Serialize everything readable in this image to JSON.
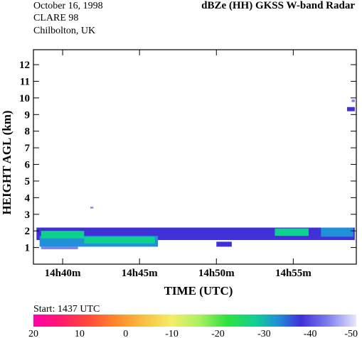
{
  "header": {
    "date": "October 16, 1998",
    "campaign": "CLARE 98",
    "site": "Chilbolton, UK",
    "title": "dBZe (HH)   GKSS  W-band Radar"
  },
  "chart_data": {
    "type": "heatmap",
    "title": "dBZe (HH)   GKSS  W-band Radar",
    "xlabel": "TIME (UTC)",
    "ylabel": "HEIGHT AGL (km)",
    "x_ticks": [
      "14h40m",
      "14h45m",
      "14h50m",
      "14h55m"
    ],
    "x_tick_minutes": [
      40,
      45,
      50,
      55
    ],
    "xlim_minutes": [
      38.1,
      59.1
    ],
    "y_ticks": [
      1,
      2,
      3,
      4,
      5,
      6,
      7,
      8,
      9,
      10,
      11,
      12
    ],
    "ylim": [
      0,
      12.9
    ],
    "colorbar": {
      "ticks": [
        "20",
        "10",
        "0",
        "-10",
        "-20",
        "-30",
        "-40",
        "-50"
      ],
      "range": [
        20,
        -50
      ],
      "start_label": "Start:  1437 UTC",
      "stops": [
        {
          "v": 20,
          "c": "#ff00a8"
        },
        {
          "v": 14,
          "c": "#ff1a6a"
        },
        {
          "v": 8,
          "c": "#ff4a3a"
        },
        {
          "v": 2,
          "c": "#ff8a2a"
        },
        {
          "v": -4,
          "c": "#f8c040"
        },
        {
          "v": -10,
          "c": "#f4ee6a"
        },
        {
          "v": -16,
          "c": "#a8f060"
        },
        {
          "v": -22,
          "c": "#30e040"
        },
        {
          "v": -28,
          "c": "#10d090"
        },
        {
          "v": -33,
          "c": "#2090d8"
        },
        {
          "v": -38,
          "c": "#4030d8"
        },
        {
          "v": -44,
          "c": "#8080ee"
        },
        {
          "v": -50,
          "c": "#e8e8fc"
        }
      ]
    },
    "echo_regions": [
      {
        "t0": 38.3,
        "t1": 59.0,
        "h0": 1.45,
        "h1": 2.2,
        "dbz": -38
      },
      {
        "t0": 38.5,
        "t1": 46.2,
        "h0": 1.05,
        "h1": 1.7,
        "dbz": -33
      },
      {
        "t0": 38.6,
        "t1": 41.4,
        "h0": 1.55,
        "h1": 2.0,
        "dbz": -27
      },
      {
        "t0": 41.4,
        "t1": 46.0,
        "h0": 1.25,
        "h1": 1.65,
        "dbz": -29
      },
      {
        "t0": 46.2,
        "t1": 58.9,
        "h0": 1.8,
        "h1": 2.15,
        "dbz": -40
      },
      {
        "t0": 53.8,
        "t1": 56.0,
        "h0": 1.7,
        "h1": 2.15,
        "dbz": -30
      },
      {
        "t0": 56.8,
        "t1": 58.9,
        "h0": 1.65,
        "h1": 2.2,
        "dbz": -31
      },
      {
        "t0": 50.0,
        "t1": 51.0,
        "h0": 1.05,
        "h1": 1.35,
        "dbz": -40
      },
      {
        "t0": 38.6,
        "t1": 41.0,
        "h0": 0.9,
        "h1": 1.05,
        "dbz": -46
      },
      {
        "t0": 58.5,
        "t1": 59.0,
        "h0": 9.2,
        "h1": 9.45,
        "dbz": -40
      },
      {
        "t0": 58.8,
        "t1": 59.0,
        "h0": 9.75,
        "h1": 9.9,
        "dbz": -42
      },
      {
        "t0": 41.8,
        "t1": 42.0,
        "h0": 3.35,
        "h1": 3.45,
        "dbz": -42
      }
    ]
  }
}
